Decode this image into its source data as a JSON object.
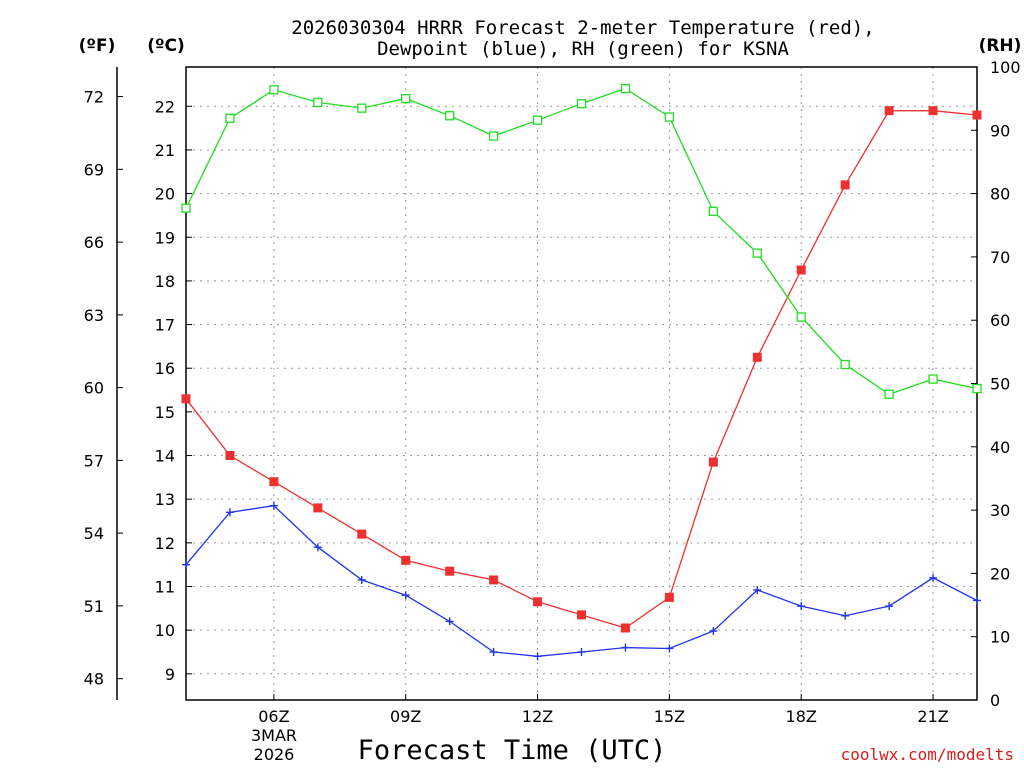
{
  "chart_data": {
    "type": "line",
    "title_line1": "2026030304 HRRR Forecast 2-meter Temperature (red),",
    "title_line2": "Dewpoint (blue), RH (green) for KSNA",
    "xlabel": "Forecast Time (UTC)",
    "unit_f": "(ºF)",
    "unit_c": "(ºC)",
    "unit_rh": "(RH)",
    "credit": "coolwx.com/modelts",
    "date_line1": "3MAR",
    "date_line2": "2026",
    "x_hours": [
      4,
      5,
      6,
      7,
      8,
      9,
      10,
      11,
      12,
      13,
      14,
      15,
      16,
      17,
      18,
      19,
      20,
      21,
      22
    ],
    "xlim": [
      4,
      22
    ],
    "x_ticks": [
      {
        "hour": 6,
        "label": "06Z"
      },
      {
        "hour": 9,
        "label": "09Z"
      },
      {
        "hour": 12,
        "label": "12Z"
      },
      {
        "hour": 15,
        "label": "15Z"
      },
      {
        "hour": 18,
        "label": "18Z"
      },
      {
        "hour": 21,
        "label": "21Z"
      }
    ],
    "ylim_c": [
      8.4,
      22.9
    ],
    "ylim_rh": [
      0,
      100
    ],
    "y_ticks_c": [
      "9",
      "10",
      "11",
      "12",
      "13",
      "14",
      "15",
      "16",
      "17",
      "18",
      "19",
      "20",
      "21",
      "22"
    ],
    "y_ticks_f": [
      "48",
      "51",
      "54",
      "57",
      "60",
      "63",
      "66",
      "69",
      "72"
    ],
    "y_ticks_rh": [
      "0",
      "10",
      "20",
      "30",
      "40",
      "50",
      "60",
      "70",
      "80",
      "90",
      "100"
    ],
    "series": [
      {
        "name": "Temperature",
        "units": "C",
        "color": "#ee3030",
        "marker": "filled-square",
        "values": [
          15.3,
          14.0,
          13.4,
          12.8,
          12.2,
          11.6,
          11.35,
          11.15,
          10.65,
          10.35,
          10.05,
          10.75,
          13.85,
          16.25,
          18.25,
          20.2,
          21.9,
          21.9,
          21.8
        ]
      },
      {
        "name": "Dewpoint",
        "units": "C",
        "color": "#2233ee",
        "marker": "plus",
        "values": [
          11.5,
          12.7,
          12.85,
          11.9,
          11.15,
          10.8,
          10.2,
          9.5,
          9.4,
          9.5,
          9.6,
          9.58,
          9.98,
          10.92,
          10.55,
          10.33,
          10.55,
          11.2,
          10.68
        ]
      },
      {
        "name": "RH",
        "units": "%",
        "color": "#22dd22",
        "marker": "open-square",
        "values": [
          77.7,
          91.9,
          96.4,
          94.4,
          93.5,
          95.0,
          92.3,
          89.1,
          91.6,
          94.2,
          96.6,
          92.1,
          77.2,
          70.6,
          60.5,
          53.0,
          48.3,
          50.7,
          49.2
        ]
      }
    ]
  }
}
